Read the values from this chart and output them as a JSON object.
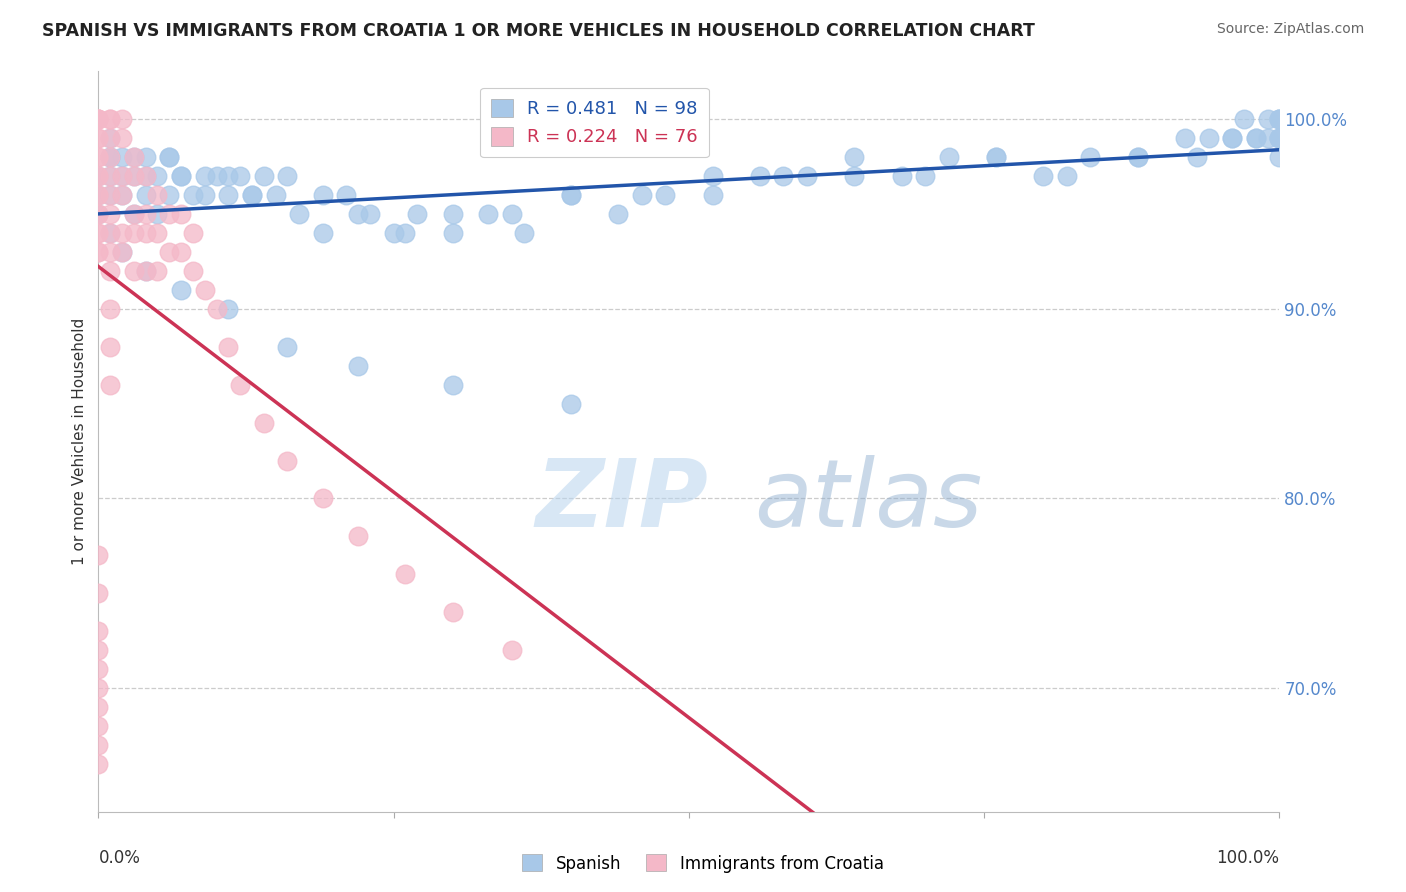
{
  "title": "SPANISH VS IMMIGRANTS FROM CROATIA 1 OR MORE VEHICLES IN HOUSEHOLD CORRELATION CHART",
  "source": "Source: ZipAtlas.com",
  "ylabel": "1 or more Vehicles in Household",
  "legend_blue_label": "R = 0.481   N = 98",
  "legend_pink_label": "R = 0.224   N = 76",
  "blue_color": "#a8c8e8",
  "blue_line_color": "#2255aa",
  "pink_color": "#f4b8c8",
  "pink_line_color": "#cc3355",
  "watermark_zip": "ZIP",
  "watermark_atlas": "atlas",
  "y_tick_vals": [
    0.7,
    0.8,
    0.9,
    1.0
  ],
  "y_tick_labels": [
    "70.0%",
    "80.0%",
    "90.0%",
    "100.0%"
  ],
  "blue_x": [
    0.0,
    0.0,
    0.0,
    0.01,
    0.01,
    0.01,
    0.01,
    0.01,
    0.02,
    0.02,
    0.03,
    0.03,
    0.04,
    0.04,
    0.05,
    0.05,
    0.06,
    0.06,
    0.07,
    0.08,
    0.09,
    0.1,
    0.11,
    0.12,
    0.13,
    0.14,
    0.15,
    0.17,
    0.19,
    0.21,
    0.23,
    0.25,
    0.27,
    0.3,
    0.33,
    0.36,
    0.4,
    0.44,
    0.48,
    0.52,
    0.56,
    0.6,
    0.64,
    0.68,
    0.72,
    0.76,
    0.8,
    0.84,
    0.88,
    0.92,
    0.94,
    0.96,
    0.97,
    0.98,
    0.99,
    1.0,
    1.0,
    1.0,
    1.0,
    1.0,
    0.01,
    0.02,
    0.03,
    0.04,
    0.06,
    0.07,
    0.09,
    0.11,
    0.13,
    0.16,
    0.19,
    0.22,
    0.26,
    0.3,
    0.35,
    0.4,
    0.46,
    0.52,
    0.58,
    0.64,
    0.7,
    0.76,
    0.82,
    0.88,
    0.93,
    0.96,
    0.98,
    0.99,
    1.0,
    1.0,
    0.02,
    0.04,
    0.07,
    0.11,
    0.16,
    0.22,
    0.3,
    0.4
  ],
  "blue_y": [
    0.97,
    0.96,
    0.95,
    0.99,
    0.98,
    0.97,
    0.96,
    0.94,
    0.98,
    0.96,
    0.97,
    0.95,
    0.98,
    0.96,
    0.97,
    0.95,
    0.98,
    0.96,
    0.97,
    0.96,
    0.97,
    0.97,
    0.96,
    0.97,
    0.96,
    0.97,
    0.96,
    0.95,
    0.94,
    0.96,
    0.95,
    0.94,
    0.95,
    0.94,
    0.95,
    0.94,
    0.96,
    0.95,
    0.96,
    0.97,
    0.97,
    0.97,
    0.98,
    0.97,
    0.98,
    0.98,
    0.97,
    0.98,
    0.98,
    0.99,
    0.99,
    0.99,
    1.0,
    0.99,
    1.0,
    1.0,
    0.99,
    1.0,
    0.99,
    0.98,
    0.98,
    0.97,
    0.98,
    0.97,
    0.98,
    0.97,
    0.96,
    0.97,
    0.96,
    0.97,
    0.96,
    0.95,
    0.94,
    0.95,
    0.95,
    0.96,
    0.96,
    0.96,
    0.97,
    0.97,
    0.97,
    0.98,
    0.97,
    0.98,
    0.98,
    0.99,
    0.99,
    0.99,
    1.0,
    0.99,
    0.93,
    0.92,
    0.91,
    0.9,
    0.88,
    0.87,
    0.86,
    0.85
  ],
  "pink_x": [
    0.0,
    0.0,
    0.0,
    0.0,
    0.0,
    0.0,
    0.0,
    0.0,
    0.0,
    0.0,
    0.0,
    0.0,
    0.0,
    0.0,
    0.0,
    0.0,
    0.0,
    0.0,
    0.01,
    0.01,
    0.01,
    0.01,
    0.01,
    0.01,
    0.01,
    0.01,
    0.01,
    0.02,
    0.02,
    0.02,
    0.02,
    0.02,
    0.02,
    0.03,
    0.03,
    0.03,
    0.03,
    0.03,
    0.04,
    0.04,
    0.04,
    0.04,
    0.05,
    0.05,
    0.05,
    0.06,
    0.06,
    0.07,
    0.07,
    0.08,
    0.08,
    0.09,
    0.1,
    0.11,
    0.12,
    0.14,
    0.16,
    0.19,
    0.22,
    0.26,
    0.3,
    0.35,
    0.0,
    0.0,
    0.0,
    0.0,
    0.0,
    0.0,
    0.0,
    0.0,
    0.0,
    0.0,
    0.01,
    0.01,
    0.01,
    0.01
  ],
  "pink_y": [
    1.0,
    1.0,
    1.0,
    1.0,
    0.99,
    0.99,
    0.98,
    0.98,
    0.97,
    0.97,
    0.96,
    0.96,
    0.95,
    0.95,
    0.94,
    0.94,
    0.93,
    0.93,
    1.0,
    1.0,
    0.99,
    0.98,
    0.97,
    0.96,
    0.95,
    0.94,
    0.93,
    1.0,
    0.99,
    0.97,
    0.96,
    0.94,
    0.93,
    0.98,
    0.97,
    0.95,
    0.94,
    0.92,
    0.97,
    0.95,
    0.94,
    0.92,
    0.96,
    0.94,
    0.92,
    0.95,
    0.93,
    0.95,
    0.93,
    0.94,
    0.92,
    0.91,
    0.9,
    0.88,
    0.86,
    0.84,
    0.82,
    0.8,
    0.78,
    0.76,
    0.74,
    0.72,
    0.77,
    0.75,
    0.73,
    0.72,
    0.71,
    0.7,
    0.69,
    0.68,
    0.67,
    0.66,
    0.92,
    0.9,
    0.88,
    0.86
  ]
}
